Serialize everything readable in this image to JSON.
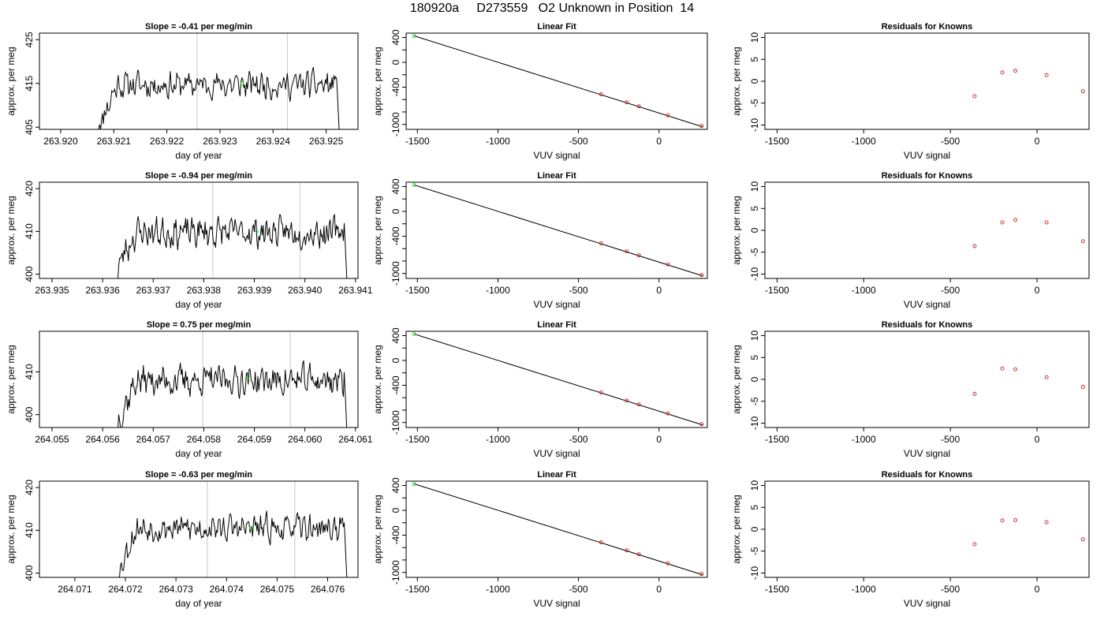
{
  "title": "180920a     D273559   O2 Unknown in Position  14",
  "colors": {
    "trace": "#000000",
    "guide": "#c8c8c8",
    "known": "#cc3333",
    "unknown": "#33dd33",
    "fit": "#000000"
  },
  "chart_data": [
    {
      "type": "line",
      "title": "Slope =  -0.41  per meg/min",
      "xlabel": "day of year",
      "ylabel": "approx. per meg",
      "xlim": [
        263.9196,
        263.9256
      ],
      "ylim": [
        404.5,
        426.5
      ],
      "xticks": [
        "263.920",
        "263.921",
        "263.922",
        "263.923",
        "263.924",
        "263.925"
      ],
      "xtickvals": [
        263.92,
        263.921,
        263.922,
        263.923,
        263.924,
        263.925
      ],
      "yticks": [
        "405",
        "415",
        "425"
      ],
      "ytickvals": [
        405,
        415,
        425
      ],
      "trace": {
        "start": 263.9207,
        "end": 263.92525,
        "base": 414.7,
        "ramp_from": 405.0,
        "amp": 2.6,
        "drop_to": 403.0,
        "seed": 11
      },
      "vlines": [
        263.92257,
        263.92427
      ],
      "unknown_point": {
        "x": 263.92342,
        "y": 415.0
      }
    },
    {
      "type": "scatter",
      "title": "Linear Fit",
      "xlabel": "VUV signal",
      "ylabel": "approx. per meg",
      "xlim": [
        -1570,
        300
      ],
      "ylim": [
        -1080,
        470
      ],
      "xticks": [
        "-1500",
        "-1000",
        "-500",
        "0"
      ],
      "xtickvals": [
        -1500,
        -1000,
        -500,
        0
      ],
      "yticks": [
        "400",
        "0",
        "-400",
        "-1000"
      ],
      "ytickvals": [
        400,
        0,
        -400,
        -1000
      ],
      "yminorticks": [
        200,
        -200,
        -600,
        -800
      ],
      "fit_line": {
        "x1": -1520,
        "y1": 426,
        "x2": 270,
        "y2": -1038
      },
      "knowns": [
        {
          "x": -360,
          "y": -515
        },
        {
          "x": -200,
          "y": -645
        },
        {
          "x": -125,
          "y": -708
        },
        {
          "x": 55,
          "y": -855
        },
        {
          "x": 265,
          "y": -1025
        }
      ],
      "unknown_point": {
        "x": -1520,
        "y": 426
      }
    },
    {
      "type": "scatter",
      "title": "Residuals for Knowns",
      "xlabel": "VUV signal",
      "ylabel": "approx. per meg",
      "xlim": [
        -1570,
        300
      ],
      "ylim": [
        -11,
        11
      ],
      "xticks": [
        "-1500",
        "-1000",
        "-500",
        "0"
      ],
      "xtickvals": [
        -1500,
        -1000,
        -500,
        0
      ],
      "yticks": [
        "10",
        "5",
        "0",
        "-5",
        "-10"
      ],
      "ytickvals": [
        10,
        5,
        0,
        -5,
        -10
      ],
      "knowns": [
        {
          "x": -360,
          "y": -3.4
        },
        {
          "x": -200,
          "y": 2.0
        },
        {
          "x": -125,
          "y": 2.4
        },
        {
          "x": 55,
          "y": 1.4
        },
        {
          "x": 265,
          "y": -2.3
        }
      ]
    },
    {
      "type": "line",
      "title": "Slope =  -0.94  per meg/min",
      "xlabel": "day of year",
      "ylabel": "approx. per meg",
      "xlim": [
        263.93475,
        263.94105
      ],
      "ylim": [
        399.0,
        421.5
      ],
      "xticks": [
        "263.935",
        "263.936",
        "263.937",
        "263.938",
        "263.939",
        "263.940",
        "263.941"
      ],
      "xtickvals": [
        263.935,
        263.936,
        263.937,
        263.938,
        263.939,
        263.94,
        263.941
      ],
      "yticks": [
        "400",
        "410",
        "420"
      ],
      "ytickvals": [
        400,
        410,
        420
      ],
      "trace": {
        "start": 263.9363,
        "end": 263.94083,
        "base": 409.8,
        "ramp_from": 402.0,
        "amp": 3.0,
        "drop_to": 398.5,
        "seed": 23
      },
      "vlines": [
        263.93818,
        263.9399
      ],
      "unknown_point": {
        "x": 263.93905,
        "y": 410.0
      }
    },
    {
      "type": "scatter",
      "title": "Linear Fit",
      "xlabel": "VUV signal",
      "ylabel": "approx. per meg",
      "xlim": [
        -1570,
        300
      ],
      "ylim": [
        -1080,
        470
      ],
      "xticks": [
        "-1500",
        "-1000",
        "-500",
        "0"
      ],
      "xtickvals": [
        -1500,
        -1000,
        -500,
        0
      ],
      "yticks": [
        "400",
        "0",
        "-400",
        "-1000"
      ],
      "ytickvals": [
        400,
        0,
        -400,
        -1000
      ],
      "yminorticks": [
        200,
        -200,
        -600,
        -800
      ],
      "fit_line": {
        "x1": -1520,
        "y1": 426,
        "x2": 270,
        "y2": -1038
      },
      "knowns": [
        {
          "x": -360,
          "y": -515
        },
        {
          "x": -200,
          "y": -645
        },
        {
          "x": -125,
          "y": -708
        },
        {
          "x": 55,
          "y": -855
        },
        {
          "x": 265,
          "y": -1025
        }
      ],
      "unknown_point": {
        "x": -1520,
        "y": 426
      }
    },
    {
      "type": "scatter",
      "title": "Residuals for Knowns",
      "xlabel": "VUV signal",
      "ylabel": "approx. per meg",
      "xlim": [
        -1570,
        300
      ],
      "ylim": [
        -11,
        11
      ],
      "xticks": [
        "-1500",
        "-1000",
        "-500",
        "0"
      ],
      "xtickvals": [
        -1500,
        -1000,
        -500,
        0
      ],
      "yticks": [
        "10",
        "5",
        "0",
        "-5",
        "-10"
      ],
      "ytickvals": [
        10,
        5,
        0,
        -5,
        -10
      ],
      "knowns": [
        {
          "x": -360,
          "y": -3.6
        },
        {
          "x": -200,
          "y": 1.8
        },
        {
          "x": -125,
          "y": 2.4
        },
        {
          "x": 55,
          "y": 1.8
        },
        {
          "x": 265,
          "y": -2.5
        }
      ]
    },
    {
      "type": "line",
      "title": "Slope =  0.75  per meg/min",
      "xlabel": "day of year",
      "ylabel": "approx. per meg",
      "xlim": [
        264.05475,
        264.06105
      ],
      "ylim": [
        397.0,
        419.5
      ],
      "xticks": [
        "264.055",
        "264.056",
        "264.057",
        "264.058",
        "264.059",
        "264.060",
        "264.061"
      ],
      "xtickvals": [
        264.055,
        264.056,
        264.057,
        264.058,
        264.059,
        264.06,
        264.061
      ],
      "yticks": [
        "400",
        "410"
      ],
      "ytickvals": [
        400,
        410
      ],
      "trace": {
        "start": 264.0563,
        "end": 264.06083,
        "base": 408.0,
        "ramp_from": 398.5,
        "amp": 3.0,
        "drop_to": 396.0,
        "seed": 37
      },
      "vlines": [
        264.05798,
        264.05971
      ],
      "unknown_point": {
        "x": 264.05885,
        "y": 408.5
      }
    },
    {
      "type": "scatter",
      "title": "Linear Fit",
      "xlabel": "VUV signal",
      "ylabel": "approx. per meg",
      "xlim": [
        -1570,
        300
      ],
      "ylim": [
        -1080,
        470
      ],
      "xticks": [
        "-1500",
        "-1000",
        "-500",
        "0"
      ],
      "xtickvals": [
        -1500,
        -1000,
        -500,
        0
      ],
      "yticks": [
        "400",
        "0",
        "-400",
        "-1000"
      ],
      "ytickvals": [
        400,
        0,
        -400,
        -1000
      ],
      "yminorticks": [
        200,
        -200,
        -600,
        -800
      ],
      "fit_line": {
        "x1": -1520,
        "y1": 426,
        "x2": 270,
        "y2": -1038
      },
      "knowns": [
        {
          "x": -360,
          "y": -515
        },
        {
          "x": -200,
          "y": -645
        },
        {
          "x": -125,
          "y": -708
        },
        {
          "x": 55,
          "y": -855
        },
        {
          "x": 265,
          "y": -1025
        }
      ],
      "unknown_point": {
        "x": -1520,
        "y": 426
      }
    },
    {
      "type": "scatter",
      "title": "Residuals for Knowns",
      "xlabel": "VUV signal",
      "ylabel": "approx. per meg",
      "xlim": [
        -1570,
        300
      ],
      "ylim": [
        -11,
        11
      ],
      "xticks": [
        "-1500",
        "-1000",
        "-500",
        "0"
      ],
      "xtickvals": [
        -1500,
        -1000,
        -500,
        0
      ],
      "yticks": [
        "10",
        "5",
        "0",
        "-5",
        "-10"
      ],
      "ytickvals": [
        10,
        5,
        0,
        -5,
        -10
      ],
      "knowns": [
        {
          "x": -360,
          "y": -3.3
        },
        {
          "x": -200,
          "y": 2.5
        },
        {
          "x": -125,
          "y": 2.3
        },
        {
          "x": 55,
          "y": 0.5
        },
        {
          "x": 265,
          "y": -1.7
        }
      ]
    },
    {
      "type": "line",
      "title": "Slope =  -0.63  per meg/min",
      "xlabel": "day of year",
      "ylabel": "approx. per meg",
      "xlim": [
        264.0703,
        264.0766
      ],
      "ylim": [
        399.0,
        421.5
      ],
      "xticks": [
        "264.071",
        "264.072",
        "264.073",
        "264.074",
        "264.075",
        "264.076"
      ],
      "xtickvals": [
        264.071,
        264.072,
        264.073,
        264.074,
        264.075,
        264.076
      ],
      "yticks": [
        "400",
        "410",
        "420"
      ],
      "ytickvals": [
        400,
        410,
        420
      ],
      "trace": {
        "start": 264.07185,
        "end": 264.07638,
        "base": 410.5,
        "ramp_from": 400.0,
        "amp": 2.6,
        "drop_to": 398.5,
        "seed": 53
      },
      "vlines": [
        264.07362,
        264.07535
      ],
      "unknown_point": {
        "x": 264.07448,
        "y": 410.5
      }
    },
    {
      "type": "scatter",
      "title": "Linear Fit",
      "xlabel": "VUV signal",
      "ylabel": "approx. per meg",
      "xlim": [
        -1570,
        300
      ],
      "ylim": [
        -1080,
        470
      ],
      "xticks": [
        "-1500",
        "-1000",
        "-500",
        "0"
      ],
      "xtickvals": [
        -1500,
        -1000,
        -500,
        0
      ],
      "yticks": [
        "400",
        "0",
        "-400",
        "-1000"
      ],
      "ytickvals": [
        400,
        0,
        -400,
        -1000
      ],
      "yminorticks": [
        200,
        -200,
        -600,
        -800
      ],
      "fit_line": {
        "x1": -1520,
        "y1": 426,
        "x2": 270,
        "y2": -1038
      },
      "knowns": [
        {
          "x": -360,
          "y": -515
        },
        {
          "x": -200,
          "y": -645
        },
        {
          "x": -125,
          "y": -708
        },
        {
          "x": 55,
          "y": -855
        },
        {
          "x": 265,
          "y": -1025
        }
      ],
      "unknown_point": {
        "x": -1520,
        "y": 426
      }
    },
    {
      "type": "scatter",
      "title": "Residuals for Knowns",
      "xlabel": "VUV signal",
      "ylabel": "approx. per meg",
      "xlim": [
        -1570,
        300
      ],
      "ylim": [
        -11,
        11
      ],
      "xticks": [
        "-1500",
        "-1000",
        "-500",
        "0"
      ],
      "xtickvals": [
        -1500,
        -1000,
        -500,
        0
      ],
      "yticks": [
        "10",
        "5",
        "0",
        "-5",
        "-10"
      ],
      "ytickvals": [
        10,
        5,
        0,
        -5,
        -10
      ],
      "knowns": [
        {
          "x": -360,
          "y": -3.4
        },
        {
          "x": -200,
          "y": 2.0
        },
        {
          "x": -125,
          "y": 2.1
        },
        {
          "x": 55,
          "y": 1.6
        },
        {
          "x": 265,
          "y": -2.3
        }
      ]
    }
  ]
}
